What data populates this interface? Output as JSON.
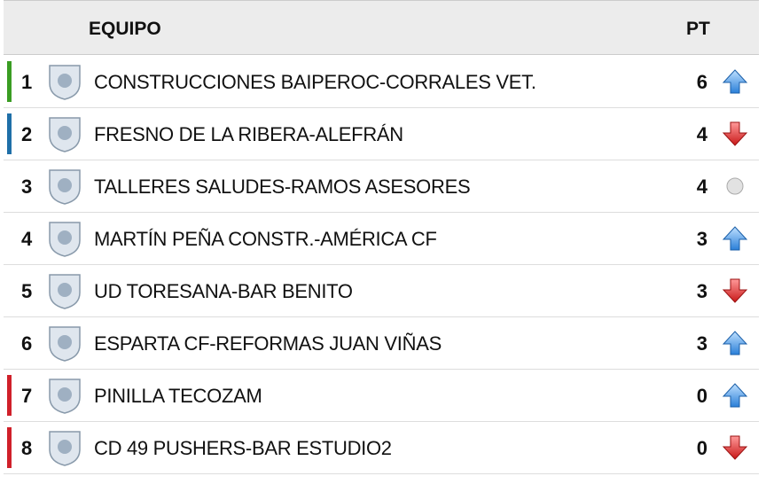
{
  "header": {
    "team": "EQUIPO",
    "points": "PT"
  },
  "rows": [
    {
      "position": 1,
      "team": "CONSTRUCCIONES BAIPEROC-CORRALES VET.",
      "points": 6,
      "trend": "up",
      "marker": "#3a9d23"
    },
    {
      "position": 2,
      "team": "FRESNO DE LA RIBERA-ALEFRÁN",
      "points": 4,
      "trend": "down",
      "marker": "#1f6fa8"
    },
    {
      "position": 3,
      "team": "TALLERES SALUDES-RAMOS ASESORES",
      "points": 4,
      "trend": "same",
      "marker": null
    },
    {
      "position": 4,
      "team": "MARTÍN PEÑA CONSTR.-AMÉRICA CF",
      "points": 3,
      "trend": "up",
      "marker": null
    },
    {
      "position": 5,
      "team": "UD TORESANA-BAR BENITO",
      "points": 3,
      "trend": "down",
      "marker": null
    },
    {
      "position": 6,
      "team": "ESPARTA CF-REFORMAS JUAN VIÑAS",
      "points": 3,
      "trend": "up",
      "marker": null
    },
    {
      "position": 7,
      "team": "PINILLA TECOZAM",
      "points": 0,
      "trend": "up",
      "marker": "#d0202a"
    },
    {
      "position": 8,
      "team": "CD 49 PUSHERS-BAR ESTUDIO2",
      "points": 0,
      "trend": "down",
      "marker": "#d0202a"
    }
  ]
}
